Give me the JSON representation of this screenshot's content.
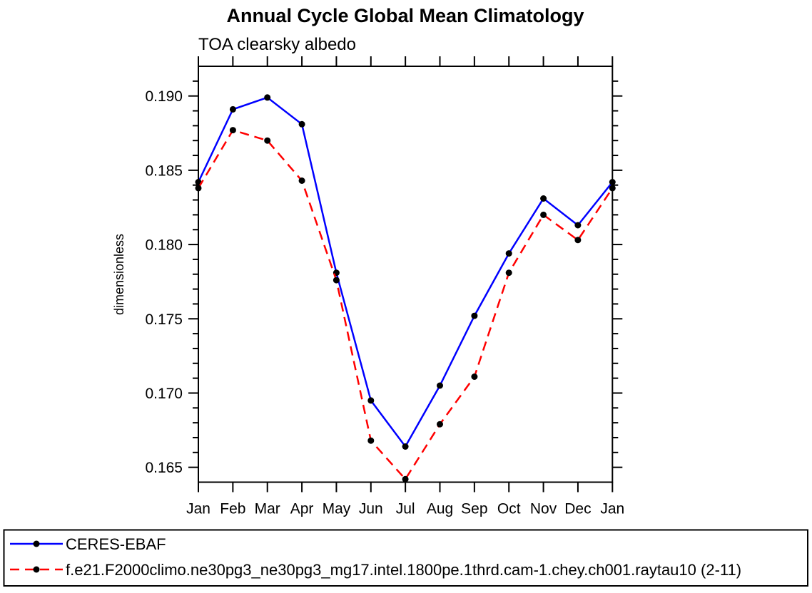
{
  "chart_data": {
    "type": "line",
    "title": "Annual Cycle Global Mean Climatology",
    "subtitle": "TOA clearsky albedo",
    "xlabel": "",
    "ylabel": "dimensionless",
    "categories": [
      "Jan",
      "Feb",
      "Mar",
      "Apr",
      "May",
      "Jun",
      "Jul",
      "Aug",
      "Sep",
      "Oct",
      "Nov",
      "Dec",
      "Jan"
    ],
    "ylim": [
      0.164,
      0.192
    ],
    "y_major_ticks": [
      0.165,
      0.17,
      0.175,
      0.18,
      0.185,
      0.19
    ],
    "y_minor_step": 0.001,
    "y_tick_decimals": 3,
    "grid": false,
    "legend_position": "bottom-left-box",
    "series": [
      {
        "name": "CERES-EBAF",
        "color": "#0000ff",
        "line_style": "solid",
        "marker": "filled-circle",
        "marker_color": "#000000",
        "values": [
          0.1842,
          0.1891,
          0.1899,
          0.1881,
          0.1781,
          0.1695,
          0.1664,
          0.1705,
          0.1752,
          0.1794,
          0.1831,
          0.1813,
          0.1842
        ]
      },
      {
        "name": "f.e21.F2000climo.ne30pg3_ne30pg3_mg17.intel.1800pe.1thrd.cam-1.chey.ch001.raytau10 (2-11)",
        "color": "#ff0000",
        "line_style": "dashed",
        "marker": "filled-circle",
        "marker_color": "#000000",
        "values": [
          0.1838,
          0.1877,
          0.187,
          0.1843,
          0.1776,
          0.1668,
          0.1642,
          0.1679,
          0.1711,
          0.1781,
          0.182,
          0.1803,
          0.1838
        ]
      }
    ]
  }
}
